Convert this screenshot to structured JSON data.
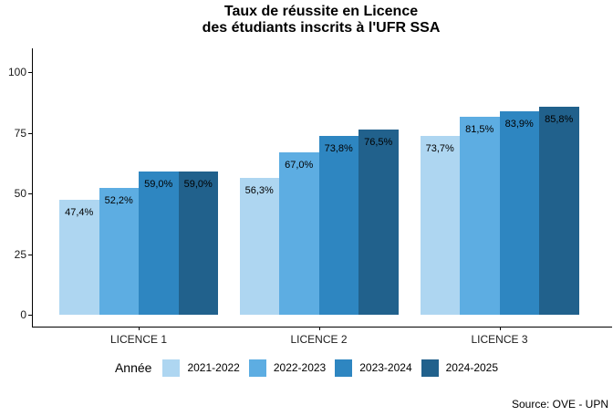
{
  "header": {
    "title_line1": "Taux de réussite en Licence",
    "title_line2": "des étudiants inscrits à l'UFR SSA"
  },
  "footer": {
    "source": "Source: OVE - UPN"
  },
  "chart_data": {
    "type": "bar",
    "title": "Taux de réussite en Licence des étudiants inscrits à l'UFR SSA",
    "categories": [
      "LICENCE 1",
      "LICENCE 2",
      "LICENCE 3"
    ],
    "series": [
      {
        "name": "2021-2022",
        "color": "#AED6F1",
        "values": [
          47.4,
          56.3,
          73.7
        ],
        "labels": [
          "47,4%",
          "56,3%",
          "73,7%"
        ]
      },
      {
        "name": "2022-2023",
        "color": "#5DADE2",
        "values": [
          52.2,
          67.0,
          81.5
        ],
        "labels": [
          "52,2%",
          "67,0%",
          "81,5%"
        ]
      },
      {
        "name": "2023-2024",
        "color": "#2E86C1",
        "values": [
          59.0,
          73.8,
          83.9
        ],
        "labels": [
          "59,0%",
          "73,8%",
          "83,9%"
        ]
      },
      {
        "name": "2024-2025",
        "color": "#21618C",
        "values": [
          59.0,
          76.5,
          85.8
        ],
        "labels": [
          "59,0%",
          "76,5%",
          "85,8%"
        ]
      }
    ],
    "ylabel": "",
    "xlabel": "",
    "y_ticks": [
      0,
      25,
      50,
      75,
      100
    ],
    "ylim": [
      0,
      110
    ],
    "grid": false,
    "legend_title": "Année",
    "legend_position": "bottom",
    "value_label_position": "inside-top"
  }
}
